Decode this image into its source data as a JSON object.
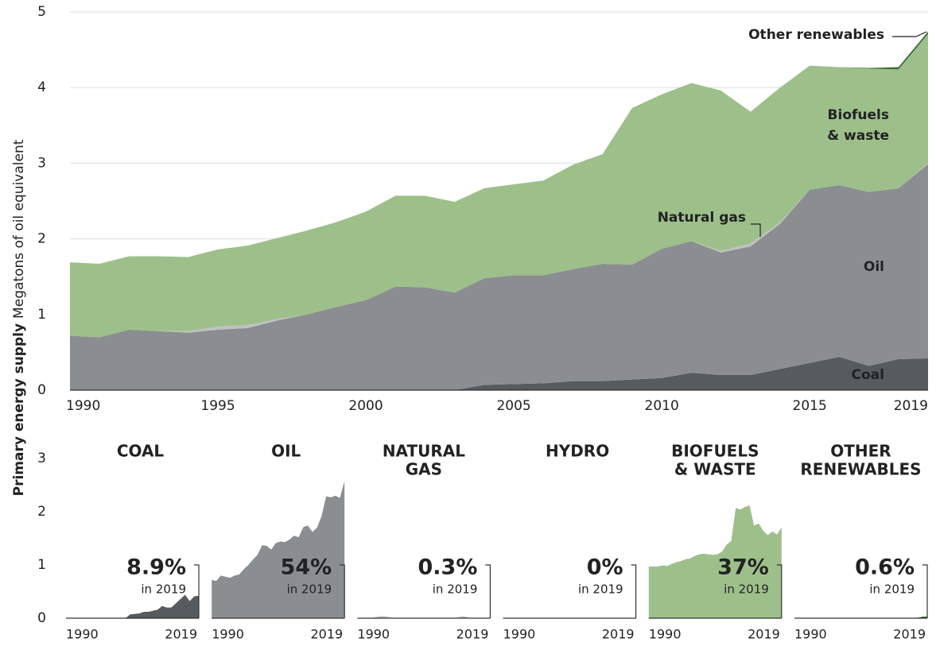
{
  "chart_data": {
    "type": "stacked-area",
    "ylabel_bold": "Primary energy supply",
    "ylabel": "Megatons of oil equivalent",
    "x": [
      1990,
      1991,
      1992,
      1993,
      1994,
      1995,
      1996,
      1997,
      1998,
      1999,
      2000,
      2001,
      2002,
      2003,
      2004,
      2005,
      2006,
      2007,
      2008,
      2009,
      2010,
      2011,
      2012,
      2013,
      2014,
      2015,
      2016,
      2017,
      2018,
      2019
    ],
    "xlim": [
      1990,
      2019
    ],
    "xticks": [
      1990,
      1995,
      2000,
      2005,
      2010,
      2015,
      2019
    ],
    "ylim": [
      0,
      5
    ],
    "yticks": [
      0,
      1,
      2,
      3,
      4,
      5
    ],
    "grid": true,
    "panel_ylim": [
      0,
      3
    ],
    "panel_yticks": [
      0,
      1,
      2,
      3
    ],
    "panel_xticks": [
      1990,
      2019
    ],
    "share_note": "in 2019",
    "series": [
      {
        "annotation": [
          "Coal"
        ],
        "panel_title": [
          "COAL"
        ],
        "color": "#555b5e",
        "share_color": "#555b5e",
        "share": {
          "value": 8.9,
          "label": "8.9%"
        },
        "values": [
          0,
          0,
          0,
          0,
          0,
          0,
          0,
          0,
          0,
          0,
          0,
          0,
          0,
          0,
          0.07,
          0.08,
          0.09,
          0.12,
          0.12,
          0.14,
          0.16,
          0.23,
          0.2,
          0.2,
          0.28,
          0.36,
          0.44,
          0.32,
          0.41,
          0.42
        ]
      },
      {
        "annotation": [
          "Oil"
        ],
        "panel_title": [
          "OIL"
        ],
        "color": "#8b8e90",
        "share_color": "#ffffff",
        "share": {
          "value": 54,
          "label": "54%"
        },
        "values": [
          0.72,
          0.7,
          0.8,
          0.78,
          0.76,
          0.8,
          0.82,
          0.92,
          1.0,
          1.1,
          1.19,
          1.37,
          1.36,
          1.29,
          1.41,
          1.44,
          1.43,
          1.48,
          1.55,
          1.52,
          1.71,
          1.74,
          1.62,
          1.7,
          1.92,
          2.29,
          2.27,
          2.3,
          2.26,
          2.57
        ]
      },
      {
        "annotation": [
          "Natural gas"
        ],
        "panel_title": [
          "NATURAL",
          "GAS"
        ],
        "color": "#c0c0c0",
        "share_color": "#8b8e90",
        "share": {
          "value": 0.3,
          "label": "0.3%"
        },
        "values": [
          0,
          0,
          0,
          0,
          0.02,
          0.04,
          0.04,
          0.02,
          0,
          0,
          0,
          0,
          0,
          0,
          0,
          0,
          0,
          0,
          0,
          0,
          0,
          0,
          0.02,
          0.04,
          0.02,
          0,
          0,
          0,
          0,
          0.01
        ]
      },
      {
        "panel_title": [
          "HYDRO"
        ],
        "color": "#4e9a3e",
        "share_color": "#6aab57",
        "share": {
          "value": 0,
          "label": "0%"
        },
        "values": [
          0,
          0,
          0,
          0,
          0,
          0,
          0,
          0,
          0,
          0,
          0,
          0,
          0,
          0,
          0,
          0,
          0,
          0,
          0,
          0,
          0,
          0,
          0,
          0,
          0,
          0,
          0,
          0,
          0,
          0
        ]
      },
      {
        "annotation": [
          "Biofuels",
          "& waste"
        ],
        "panel_title": [
          "BIOFUELS",
          "& WASTE"
        ],
        "color": "#9dc08b",
        "share_color": "#ffffff",
        "share": {
          "value": 37,
          "label": "37%"
        },
        "values": [
          0.97,
          0.97,
          0.97,
          0.99,
          0.98,
          1.02,
          1.05,
          1.07,
          1.11,
          1.12,
          1.17,
          1.2,
          1.21,
          1.2,
          1.19,
          1.2,
          1.25,
          1.38,
          1.45,
          2.07,
          2.04,
          2.09,
          2.12,
          1.74,
          1.78,
          1.64,
          1.56,
          1.63,
          1.57,
          1.71
        ]
      },
      {
        "annotation": [
          "Other renewables"
        ],
        "panel_title": [
          "OTHER",
          "RENEWABLES"
        ],
        "color": "#3a6b35",
        "share_color": "#3a6b35",
        "share": {
          "value": 0.6,
          "label": "0.6%"
        },
        "values": [
          0,
          0,
          0,
          0,
          0,
          0,
          0,
          0,
          0,
          0,
          0,
          0,
          0,
          0,
          0,
          0,
          0,
          0,
          0,
          0,
          0,
          0,
          0,
          0,
          0,
          0,
          0,
          0.01,
          0.03,
          0.03
        ]
      }
    ]
  }
}
